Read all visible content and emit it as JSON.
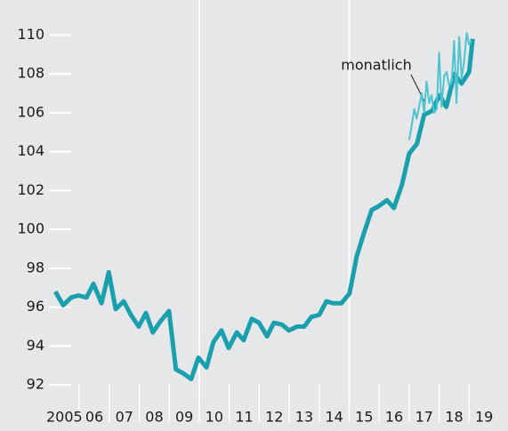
{
  "chart_data": {
    "type": "line",
    "annotation": "monatlich",
    "year_labels": [
      "2005",
      "06",
      "07",
      "08",
      "09",
      "10",
      "11",
      "12",
      "13",
      "14",
      "15",
      "16",
      "17",
      "18",
      "19"
    ],
    "xlim": [
      2005,
      2020
    ],
    "xgrid_lines": [
      2010,
      2015
    ],
    "ylim": [
      91,
      111.8
    ],
    "yticks": [
      92,
      94,
      96,
      98,
      100,
      102,
      104,
      106,
      108,
      110
    ],
    "series": [
      {
        "color": "#1a9fac",
        "x": [
          2005.2,
          2005.46,
          2005.73,
          2005.97,
          2006.24,
          2006.47,
          2006.74,
          2006.98,
          2007.21,
          2007.48,
          2007.72,
          2007.98,
          2008.22,
          2008.45,
          2008.72,
          2008.99,
          2009.22,
          2009.46,
          2009.73,
          2009.97,
          2010.24,
          2010.47,
          2010.74,
          2010.98,
          2011.25,
          2011.48,
          2011.75,
          2011.99,
          2012.26,
          2012.49,
          2012.76,
          2012.99,
          2013.26,
          2013.5,
          2013.74,
          2014.0,
          2014.24,
          2014.47,
          2014.74,
          2015.01,
          2015.25,
          2015.49,
          2015.75,
          2015.99,
          2016.26,
          2016.49,
          2016.76,
          2017.0,
          2017.26,
          2017.5,
          2017.77,
          2018.01,
          2018.24,
          2018.51,
          2018.75,
          2019.0,
          2019.12
        ],
        "values": [
          96.8,
          96.1,
          96.5,
          96.6,
          96.5,
          97.2,
          96.2,
          97.8,
          95.9,
          96.3,
          95.6,
          95.0,
          95.7,
          94.7,
          95.3,
          95.8,
          92.8,
          92.6,
          92.3,
          93.4,
          92.9,
          94.2,
          94.8,
          93.9,
          94.7,
          94.3,
          95.4,
          95.2,
          94.5,
          95.2,
          95.1,
          94.8,
          95.0,
          95.0,
          95.5,
          95.6,
          96.3,
          96.2,
          96.2,
          96.7,
          98.6,
          99.8,
          101.0,
          101.2,
          101.5,
          101.1,
          102.3,
          103.9,
          104.4,
          105.9,
          106.1,
          106.9,
          106.3,
          108.0,
          107.5,
          108.1,
          109.8
        ],
        "width": 5
      },
      {
        "color": "#4fc4d1",
        "x": [
          2017.0,
          2017.08,
          2017.17,
          2017.25,
          2017.33,
          2017.42,
          2017.5,
          2017.58,
          2017.67,
          2017.75,
          2017.83,
          2017.92,
          2018.0,
          2018.08,
          2018.17,
          2018.25,
          2018.33,
          2018.42,
          2018.5,
          2018.58,
          2018.67,
          2018.75,
          2018.83,
          2018.92,
          2019.0,
          2019.08
        ],
        "values": [
          104.6,
          105.3,
          106.2,
          105.7,
          106.3,
          107.0,
          106.0,
          107.6,
          106.5,
          106.9,
          106.0,
          106.2,
          109.1,
          106.3,
          107.9,
          108.1,
          107.4,
          107.6,
          109.7,
          106.5,
          109.9,
          107.8,
          108.6,
          110.1,
          109.5,
          109.7
        ],
        "width": 2
      }
    ]
  }
}
